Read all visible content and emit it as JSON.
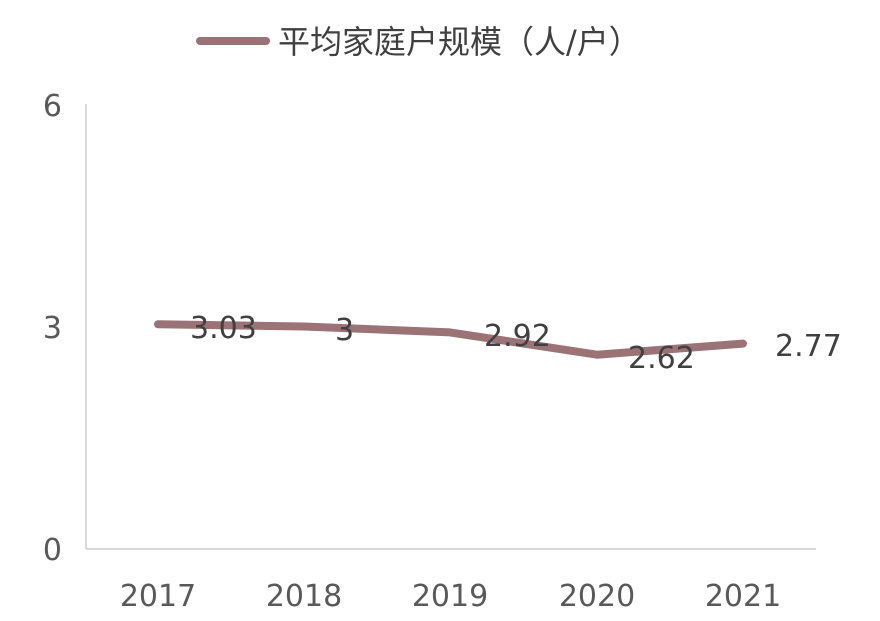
{
  "chart_data": {
    "type": "line",
    "categories": [
      "2017",
      "2018",
      "2019",
      "2020",
      "2021"
    ],
    "series": [
      {
        "name": "平均家庭户规模（人/户）",
        "values": [
          3.03,
          3,
          2.92,
          2.62,
          2.77
        ],
        "labels": [
          "3.03",
          "3",
          "2.92",
          "2.62",
          "2.77"
        ],
        "color": "#9b7276"
      }
    ],
    "y_ticks": [
      "0",
      "3",
      "6"
    ],
    "ylim": [
      0,
      6
    ],
    "grid": false,
    "legend_position": "top",
    "axis_color": "#d9d9d9"
  }
}
